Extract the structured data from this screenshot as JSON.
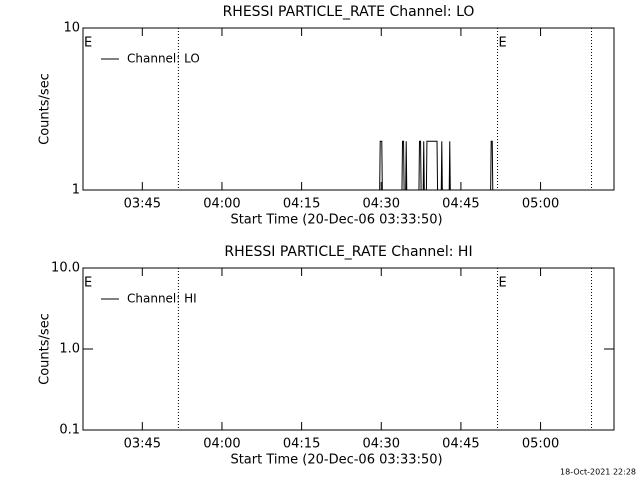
{
  "chart_data": [
    {
      "type": "line",
      "title": "RHESSI PARTICLE_RATE Channel: LO",
      "xlabel": "Start Time (20-Dec-06 03:33:50)",
      "ylabel": "Counts/sec",
      "xlim": [
        213.83,
        313.83
      ],
      "xticks": [
        {
          "value": 225,
          "label": "03:45"
        },
        {
          "value": 240,
          "label": "04:00"
        },
        {
          "value": 255,
          "label": "04:15"
        },
        {
          "value": 270,
          "label": "04:30"
        },
        {
          "value": 285,
          "label": "04:45"
        },
        {
          "value": 300,
          "label": "05:00"
        }
      ],
      "ylim": [
        1,
        10
      ],
      "yticks": [
        1,
        10
      ],
      "log_y": true,
      "vlines": [
        231.8,
        291.9,
        309.6
      ],
      "event_labels": [
        {
          "text": "E",
          "x": 213.83
        },
        {
          "text": "E",
          "x": 291.9
        }
      ],
      "legend": "upper left",
      "series": [
        {
          "name": "Channel: LO",
          "color": "#000000",
          "x": [
            214,
            269.7,
            269.8,
            270.1,
            270.2,
            273.9,
            274.0,
            274.2,
            274.3,
            274.6,
            274.7,
            274.8,
            277.1,
            277.2,
            277.4,
            277.5,
            277.9,
            278.0,
            278.1,
            278.5,
            278.6,
            280.5,
            280.6,
            281.3,
            281.4,
            281.5,
            282.8,
            282.9,
            283.0,
            290.6,
            290.7,
            290.9,
            291.0
          ],
          "values": [
            1,
            1,
            2,
            2,
            1,
            1,
            2,
            2,
            1,
            1,
            2,
            1,
            1,
            2,
            2,
            1,
            1,
            2,
            1,
            1,
            2,
            2,
            1,
            1,
            2,
            1,
            1,
            2,
            1,
            1,
            2,
            2,
            1
          ]
        }
      ]
    },
    {
      "type": "line",
      "title": "RHESSI PARTICLE_RATE Channel: HI",
      "xlabel": "Start Time (20-Dec-06 03:33:50)",
      "ylabel": "Counts/sec",
      "xlim": [
        213.83,
        313.83
      ],
      "xticks": [
        {
          "value": 225,
          "label": "03:45"
        },
        {
          "value": 240,
          "label": "04:00"
        },
        {
          "value": 255,
          "label": "04:15"
        },
        {
          "value": 270,
          "label": "04:30"
        },
        {
          "value": 285,
          "label": "04:45"
        },
        {
          "value": 300,
          "label": "05:00"
        }
      ],
      "ylim": [
        0.1,
        10
      ],
      "yticks": [
        0.1,
        {
          "value": 1,
          "label": "1.0"
        },
        {
          "value": 10,
          "label": "10.0"
        }
      ],
      "log_y": true,
      "vlines": [
        231.8,
        291.9,
        309.6
      ],
      "event_labels": [
        {
          "text": "E",
          "x": 213.83
        },
        {
          "text": "E",
          "x": 291.9
        }
      ],
      "legend": "upper left",
      "series": [
        {
          "name": "Channel: HI",
          "color": "#000000",
          "x": [],
          "values": []
        }
      ]
    }
  ],
  "footer": "18-Oct-2021 22:28"
}
